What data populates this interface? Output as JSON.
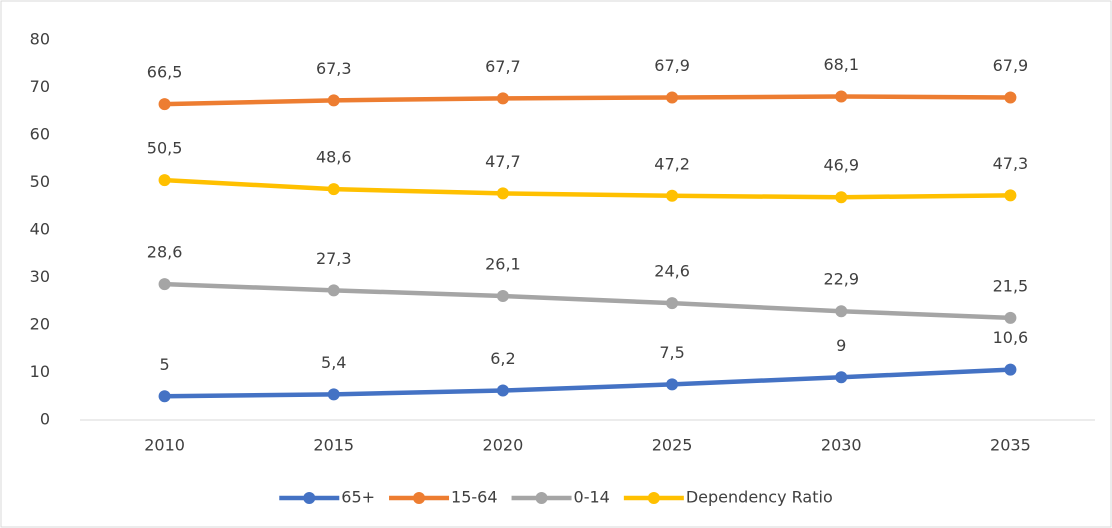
{
  "chart_data": {
    "type": "line",
    "categories": [
      "2010",
      "2015",
      "2020",
      "2025",
      "2030",
      "2035"
    ],
    "series": [
      {
        "name": "65+",
        "color": "#4472c4",
        "values": [
          5,
          5.4,
          6.2,
          7.5,
          9,
          10.6
        ],
        "value_labels": [
          "5",
          "5,4",
          "6,2",
          "7,5",
          "9",
          "10,6"
        ]
      },
      {
        "name": "15-64",
        "color": "#ed7d31",
        "values": [
          66.5,
          67.3,
          67.7,
          67.9,
          68.1,
          67.9
        ],
        "value_labels": [
          "66,5",
          "67,3",
          "67,7",
          "67,9",
          "68,1",
          "67,9"
        ]
      },
      {
        "name": "0-14",
        "color": "#a5a5a5",
        "values": [
          28.6,
          27.3,
          26.1,
          24.6,
          22.9,
          21.5
        ],
        "value_labels": [
          "28,6",
          "27,3",
          "26,1",
          "24,6",
          "22,9",
          "21,5"
        ]
      },
      {
        "name": "Dependency Ratio",
        "color": "#ffc000",
        "values": [
          50.5,
          48.6,
          47.7,
          47.2,
          46.9,
          47.3
        ],
        "value_labels": [
          "50,5",
          "48,6",
          "47,7",
          "47,2",
          "46,9",
          "47,3"
        ]
      }
    ],
    "ylim": [
      0,
      80
    ],
    "yticks": [
      0,
      10,
      20,
      30,
      40,
      50,
      60,
      70,
      80
    ],
    "grid": false,
    "legend": "bottom"
  }
}
